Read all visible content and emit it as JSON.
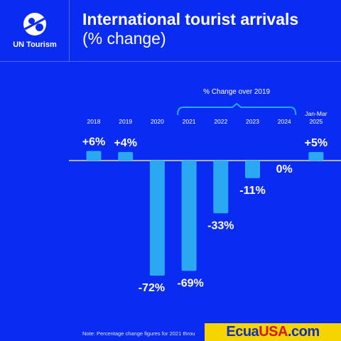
{
  "brand": {
    "logo_text": "UN Tourism",
    "logo_icon": "un-tourism-globe-icon"
  },
  "header": {
    "title": "International tourist arrivals",
    "subtitle": "(% change)"
  },
  "bracket_label": "% Change over 2019",
  "note": "Note: Percentage change figures for 2021 throu",
  "watermark": {
    "part1": "Ecua",
    "part2": "USA",
    "part3": ".com"
  },
  "colors": {
    "background": "#0a2cf0",
    "bar": "#2aa8f2",
    "text": "#ffffff"
  },
  "chart_data": {
    "type": "bar",
    "title": "International tourist arrivals",
    "subtitle": "(% change)",
    "categories": [
      "2018",
      "2019",
      "2020",
      "2021",
      "2022",
      "2023",
      "2024",
      [
        "Jan-Mar",
        "2025"
      ]
    ],
    "values": [
      6,
      4,
      -72,
      -69,
      -33,
      -11,
      0,
      5
    ],
    "data_labels": [
      "+6%",
      "+4%",
      "-72%",
      "-69%",
      "-33%",
      "-11%",
      "0%",
      "+5%"
    ],
    "annotation": {
      "text": "% Change over 2019",
      "from": "2021",
      "to": "2024"
    },
    "ylim": [
      -72,
      6
    ],
    "grid": false,
    "legend": "none"
  }
}
